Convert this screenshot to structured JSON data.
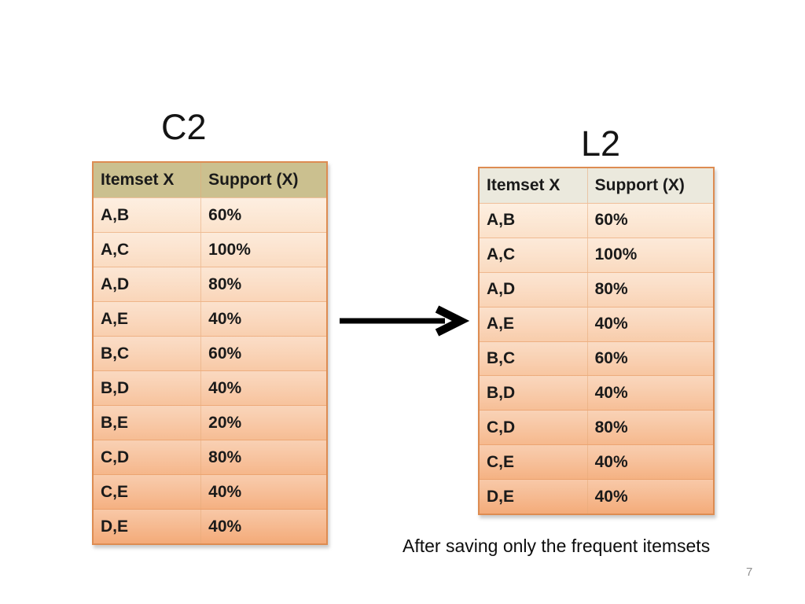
{
  "slide": {
    "caption": "After saving only the frequent itemsets",
    "page_number": "7"
  },
  "left_table": {
    "title": "C2",
    "columns": [
      "Itemset X",
      "Support (X)"
    ],
    "rows": [
      [
        "A,B",
        "60%"
      ],
      [
        "A,C",
        "100%"
      ],
      [
        "A,D",
        "80%"
      ],
      [
        "A,E",
        "40%"
      ],
      [
        "B,C",
        "60%"
      ],
      [
        "B,D",
        "40%"
      ],
      [
        "B,E",
        "20%"
      ],
      [
        "C,D",
        "80%"
      ],
      [
        "C,E",
        "40%"
      ],
      [
        "D,E",
        "40%"
      ]
    ],
    "header_bg": "#cbc08f",
    "border_color": "#dd8c52",
    "body_gradient": [
      "#fdeedd",
      "#f4aa78"
    ]
  },
  "right_table": {
    "title": "L2",
    "columns": [
      "Itemset X",
      "Support (X)"
    ],
    "rows": [
      [
        "A,B",
        "60%"
      ],
      [
        "A,C",
        "100%"
      ],
      [
        "A,D",
        "80%"
      ],
      [
        "A,E",
        "40%"
      ],
      [
        "B,C",
        "60%"
      ],
      [
        "B,D",
        "40%"
      ],
      [
        "C,D",
        "80%"
      ],
      [
        "C,E",
        "40%"
      ],
      [
        "D,E",
        "40%"
      ]
    ],
    "header_bg": "#ebe9dd",
    "border_color": "#dd8c52",
    "body_gradient": [
      "#fdeedd",
      "#f4ab79"
    ]
  },
  "arrow": {
    "color": "#000000"
  }
}
